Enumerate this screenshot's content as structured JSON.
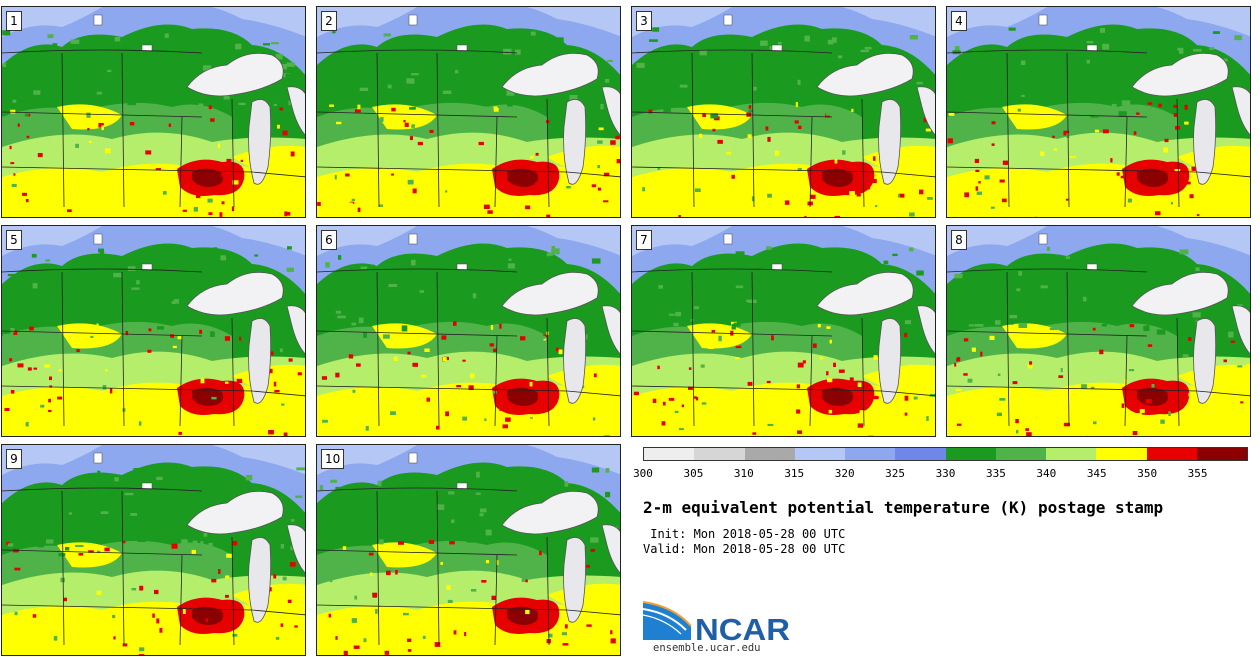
{
  "panels": [
    {
      "number": "1"
    },
    {
      "number": "2"
    },
    {
      "number": "3"
    },
    {
      "number": "4"
    },
    {
      "number": "5"
    },
    {
      "number": "6"
    },
    {
      "number": "7"
    },
    {
      "number": "8"
    },
    {
      "number": "9"
    },
    {
      "number": "10"
    }
  ],
  "colorbar": {
    "colors": [
      "#eeeeee",
      "#d6d6d6",
      "#a9a9a9",
      "#b5c8f5",
      "#8ea8f0",
      "#6e87e8",
      "#1a9a1f",
      "#4fb34a",
      "#b5ee6a",
      "#ffff00",
      "#e60000",
      "#8b0000"
    ],
    "tick_labels": [
      "300",
      "305",
      "310",
      "315",
      "320",
      "325",
      "330",
      "335",
      "340",
      "345",
      "350",
      "355"
    ]
  },
  "title": "2-m equivalent potential temperature (K) postage stamp",
  "init_line": " Init: Mon 2018-05-28 00 UTC",
  "valid_line": "Valid: Mon 2018-05-28 00 UTC",
  "logo": {
    "text": "NCAR",
    "url": "ensemble.ucar.edu",
    "brand_color": "#1f5fa8"
  }
}
